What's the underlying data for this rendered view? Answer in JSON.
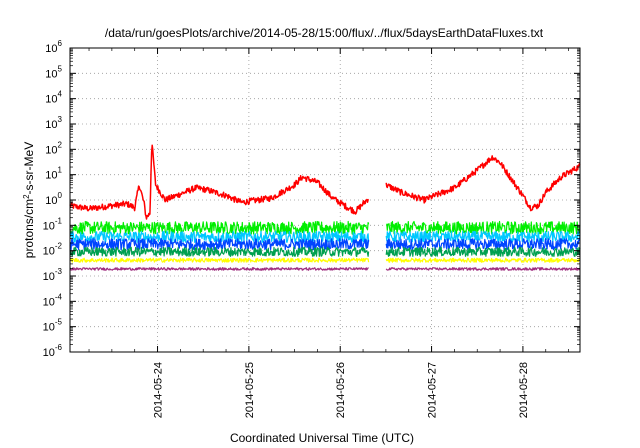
{
  "chart_data": {
    "type": "line",
    "title": "/data/run/goesPlots/archive/2014-05-28/15:00/flux/../flux/5daysEarthDataFluxes.txt",
    "xlabel": "Coordinated Universal Time (UTC)",
    "ylabel": "protons/cm2-s-sr-MeV",
    "y_scale": "log",
    "ylim": [
      1e-06,
      1000000.0
    ],
    "xlim": [
      "2014-05-23 01:00",
      "2014-05-28 15:00"
    ],
    "x_ticks": [
      "2014-05-24",
      "2014-05-25",
      "2014-05-26",
      "2014-05-27",
      "2014-05-28"
    ],
    "y_ticks": [
      {
        "mant": "10",
        "exp": "6"
      },
      {
        "mant": "10",
        "exp": "5"
      },
      {
        "mant": "10",
        "exp": "4"
      },
      {
        "mant": "10",
        "exp": "3"
      },
      {
        "mant": "10",
        "exp": "2"
      },
      {
        "mant": "10",
        "exp": "1"
      },
      {
        "mant": "10",
        "exp": "0"
      },
      {
        "mant": "10",
        "exp": "-1"
      },
      {
        "mant": "10",
        "exp": "-2"
      },
      {
        "mant": "10",
        "exp": "-3"
      },
      {
        "mant": "10",
        "exp": "-4"
      },
      {
        "mant": "10",
        "exp": "-5"
      },
      {
        "mant": "10",
        "exp": "-6"
      }
    ],
    "grid": true,
    "data_gap": [
      "2014-05-26 07:30",
      "2014-05-26 12:00"
    ],
    "series": [
      {
        "color": "#ff0000",
        "noise": 0.12,
        "values": [
          [
            "2014-05-23 01:00",
            0.6
          ],
          [
            "2014-05-23 06:00",
            0.45
          ],
          [
            "2014-05-23 12:00",
            0.6
          ],
          [
            "2014-05-23 16:00",
            0.7
          ],
          [
            "2014-05-23 18:00",
            0.5
          ],
          [
            "2014-05-23 19:12",
            4.0
          ],
          [
            "2014-05-23 20:30",
            0.7
          ],
          [
            "2014-05-23 21:00",
            0.2
          ],
          [
            "2014-05-23 22:00",
            0.3
          ],
          [
            "2014-05-23 22:30",
            200
          ],
          [
            "2014-05-23 23:30",
            4.0
          ],
          [
            "2014-05-24 02:00",
            1.0
          ],
          [
            "2014-05-24 05:00",
            1.5
          ],
          [
            "2014-05-24 10:00",
            3.0
          ],
          [
            "2014-05-24 13:00",
            2.5
          ],
          [
            "2014-05-24 18:00",
            1.5
          ],
          [
            "2014-05-24 22:00",
            0.8
          ],
          [
            "2014-05-25 06:00",
            1.2
          ],
          [
            "2014-05-25 12:00",
            4.0
          ],
          [
            "2014-05-25 14:00",
            8.0
          ],
          [
            "2014-05-25 18:00",
            5.0
          ],
          [
            "2014-05-25 22:00",
            1.2
          ],
          [
            "2014-05-26 02:00",
            0.5
          ],
          [
            "2014-05-26 04:00",
            0.35
          ],
          [
            "2014-05-26 07:30",
            1.2
          ],
          [
            "2014-05-26 12:00",
            4.0
          ],
          [
            "2014-05-26 16:00",
            2.0
          ],
          [
            "2014-05-26 22:00",
            1.0
          ],
          [
            "2014-05-27 06:00",
            3.0
          ],
          [
            "2014-05-27 12:00",
            15
          ],
          [
            "2014-05-27 16:00",
            50
          ],
          [
            "2014-05-27 18:00",
            30
          ],
          [
            "2014-05-27 22:00",
            4.0
          ],
          [
            "2014-05-28 00:00",
            1.5
          ],
          [
            "2014-05-28 02:00",
            0.5
          ],
          [
            "2014-05-28 04:00",
            0.6
          ],
          [
            "2014-05-28 06:00",
            2.0
          ],
          [
            "2014-05-28 10:00",
            8.0
          ],
          [
            "2014-05-28 15:00",
            22
          ]
        ]
      },
      {
        "color": "#00ee00",
        "noise": 0.25,
        "values": [
          [
            "2014-05-23 01:00",
            0.08
          ],
          [
            "2014-05-28 15:00",
            0.08
          ]
        ]
      },
      {
        "color": "#00c8ff",
        "noise": 0.22,
        "values": [
          [
            "2014-05-23 01:00",
            0.035
          ],
          [
            "2014-05-28 15:00",
            0.035
          ]
        ]
      },
      {
        "color": "#0044ff",
        "noise": 0.22,
        "values": [
          [
            "2014-05-23 01:00",
            0.018
          ],
          [
            "2014-05-28 15:00",
            0.018
          ]
        ]
      },
      {
        "color": "#00a050",
        "noise": 0.18,
        "values": [
          [
            "2014-05-23 01:00",
            0.009
          ],
          [
            "2014-05-28 15:00",
            0.009
          ]
        ]
      },
      {
        "color": "#ffff00",
        "noise": 0.08,
        "values": [
          [
            "2014-05-23 01:00",
            0.0042
          ],
          [
            "2014-05-28 15:00",
            0.0042
          ]
        ]
      },
      {
        "color": "#a03080",
        "noise": 0.05,
        "values": [
          [
            "2014-05-23 01:00",
            0.0019
          ],
          [
            "2014-05-28 15:00",
            0.0019
          ]
        ]
      }
    ]
  }
}
